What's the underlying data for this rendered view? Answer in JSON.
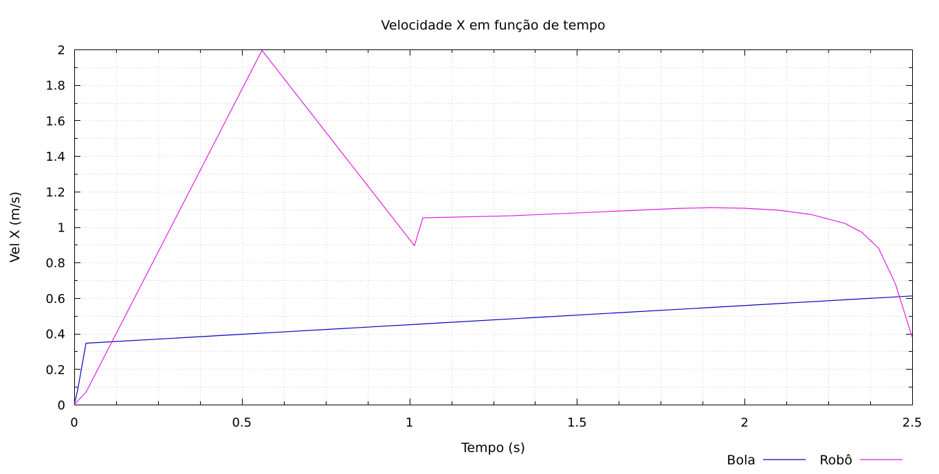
{
  "chart_data": {
    "type": "line",
    "title": "Velocidade X em função de tempo",
    "xlabel": "Tempo (s)",
    "ylabel": "Vel X (m/s)",
    "xlim": [
      0,
      2.5
    ],
    "ylim": [
      0,
      2
    ],
    "xticks": [
      "0",
      "0.5",
      "1",
      "1.5",
      "2",
      "2.5"
    ],
    "yticks": [
      "0",
      "0.2",
      "0.4",
      "0.6",
      "0.8",
      "1",
      "1.2",
      "1.4",
      "1.6",
      "1.8",
      "2"
    ],
    "grid": true,
    "legend_position": "bottom-right",
    "series": [
      {
        "name": "Bola",
        "color": "#0000c0",
        "x": [
          0.0,
          0.01,
          0.035,
          2.5
        ],
        "y": [
          0.0,
          0.08,
          0.346,
          0.612
        ]
      },
      {
        "name": "Robô",
        "color": "#e01be0",
        "x": [
          0.0,
          0.035,
          0.56,
          1.015,
          1.04,
          1.3,
          1.6,
          1.8,
          1.9,
          2.0,
          2.1,
          2.2,
          2.3,
          2.35,
          2.4,
          2.45,
          2.5
        ],
        "y": [
          0.0,
          0.07,
          1.995,
          0.895,
          1.052,
          1.063,
          1.088,
          1.105,
          1.109,
          1.106,
          1.095,
          1.07,
          1.02,
          0.97,
          0.88,
          0.68,
          0.38
        ]
      }
    ]
  }
}
